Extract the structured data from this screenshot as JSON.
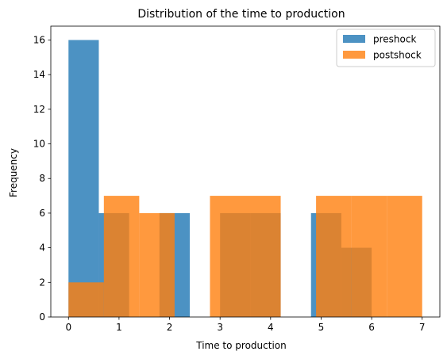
{
  "chart_data": {
    "type": "bar",
    "title": "Distribution of the time to production",
    "xlabel": "Time to production",
    "ylabel": "Frequency",
    "xlim": [
      -0.35,
      7.35
    ],
    "ylim": [
      0,
      16.8
    ],
    "xticks": [
      0,
      1,
      2,
      3,
      4,
      5,
      6,
      7
    ],
    "yticks": [
      0,
      2,
      4,
      6,
      8,
      10,
      12,
      14,
      16
    ],
    "legend_position": "top-right",
    "series": [
      {
        "name": "preshock",
        "color": "#1f77b4",
        "opacity": 0.8,
        "bin_edges": [
          0.0,
          0.6,
          1.2,
          1.8,
          2.4,
          3.0,
          3.6,
          4.2,
          4.8,
          5.4,
          6.0
        ],
        "values": [
          16,
          6,
          0,
          6,
          0,
          6,
          6,
          0,
          6,
          4
        ]
      },
      {
        "name": "postshock",
        "color": "#ff7f0e",
        "opacity": 0.8,
        "bin_edges": [
          0.0,
          0.7,
          1.4,
          2.1,
          2.8,
          3.5,
          4.2,
          4.9,
          5.6,
          6.3,
          7.0
        ],
        "values": [
          2,
          7,
          6,
          0,
          7,
          7,
          0,
          7,
          7,
          7
        ]
      }
    ]
  }
}
